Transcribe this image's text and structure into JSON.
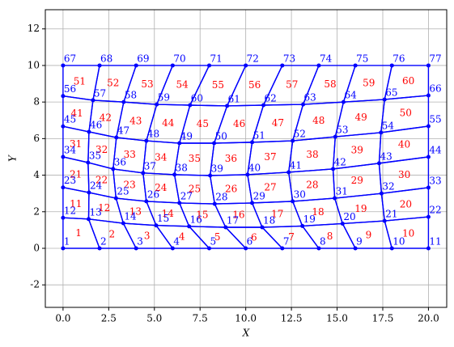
{
  "chart_data": {
    "type": "mesh",
    "xlabel": "X",
    "ylabel": "Y",
    "xlim": [
      -0.97,
      21.0
    ],
    "ylim": [
      -3.23,
      13.05
    ],
    "xticks": [
      {
        "value": 0,
        "label": "0.0"
      },
      {
        "value": 2.5,
        "label": "2.5"
      },
      {
        "value": 5,
        "label": "5.0"
      },
      {
        "value": 7.5,
        "label": "7.5"
      },
      {
        "value": 10,
        "label": "10.0"
      },
      {
        "value": 12.5,
        "label": "12.5"
      },
      {
        "value": 15,
        "label": "15.0"
      },
      {
        "value": 17.5,
        "label": "17.5"
      },
      {
        "value": 20,
        "label": "20.0"
      }
    ],
    "yticks": [
      -2,
      0,
      2,
      4,
      6,
      8,
      10,
      12
    ],
    "grid": true,
    "node_color": "#0000ff",
    "element_color": "#ff0000",
    "nodes": {
      "labels": [
        1,
        2,
        3,
        4,
        5,
        6,
        7,
        8,
        9,
        10,
        11,
        12,
        13,
        14,
        15,
        16,
        17,
        18,
        19,
        20,
        21,
        22,
        23,
        24,
        25,
        26,
        27,
        28,
        29,
        30,
        31,
        32,
        33,
        34,
        35,
        36,
        37,
        38,
        39,
        40,
        41,
        42,
        43,
        44,
        45,
        46,
        47,
        48,
        49,
        50,
        51,
        52,
        53,
        54,
        55,
        56,
        57,
        58,
        59,
        60,
        61,
        62,
        63,
        64,
        65,
        66,
        67,
        68,
        69,
        70,
        71,
        72,
        73,
        74,
        75,
        76,
        77
      ],
      "x": [
        0,
        2,
        4,
        6,
        8,
        10,
        12,
        14,
        16,
        18,
        20,
        0,
        1.4,
        3.3,
        5.1,
        6.9,
        8.9,
        10.9,
        13.1,
        15.3,
        17.6,
        20,
        0,
        1.42,
        2.9,
        4.56,
        6.37,
        8.3,
        10.35,
        12.57,
        14.87,
        17.43,
        20,
        0,
        1.37,
        2.74,
        4.38,
        6.1,
        8.05,
        10.1,
        12.35,
        14.78,
        17.3,
        20,
        0,
        1.42,
        2.92,
        4.56,
        6.37,
        8.27,
        10.35,
        12.57,
        14.9,
        17.4,
        20,
        0,
        1.64,
        3.32,
        5.13,
        6.95,
        8.98,
        10.97,
        13.14,
        15.35,
        17.6,
        20,
        0,
        2,
        4,
        6,
        8,
        10,
        12,
        14,
        16,
        18,
        20
      ],
      "y": [
        0,
        0,
        0,
        0,
        0,
        0,
        0,
        0,
        0,
        0,
        0,
        1.67,
        1.6,
        1.37,
        1.25,
        1.2,
        1.15,
        1.15,
        1.22,
        1.35,
        1.5,
        1.72,
        3.33,
        3.05,
        2.74,
        2.57,
        2.48,
        2.43,
        2.48,
        2.57,
        2.74,
        3.0,
        3.32,
        5.0,
        4.69,
        4.34,
        4.12,
        4.03,
        3.98,
        4.03,
        4.16,
        4.34,
        4.65,
        5.0,
        6.67,
        6.37,
        6.06,
        5.88,
        5.75,
        5.75,
        5.8,
        5.88,
        6.1,
        6.33,
        6.68,
        8.33,
        8.1,
        8.0,
        7.87,
        7.83,
        7.79,
        7.83,
        7.87,
        8.0,
        8.14,
        8.36,
        10,
        10,
        10,
        10,
        10,
        10,
        10,
        10,
        10,
        10,
        10
      ]
    },
    "elements": {
      "labels": [
        1,
        2,
        3,
        4,
        5,
        6,
        7,
        8,
        9,
        10,
        11,
        12,
        13,
        14,
        15,
        16,
        17,
        18,
        19,
        20,
        21,
        22,
        23,
        24,
        25,
        26,
        27,
        28,
        29,
        30,
        31,
        32,
        33,
        34,
        35,
        36,
        37,
        38,
        39,
        40,
        41,
        42,
        43,
        44,
        45,
        46,
        47,
        48,
        49,
        50,
        51,
        52,
        53,
        54,
        55,
        56,
        57,
        58,
        59,
        60
      ],
      "connectivity": [
        [
          1,
          2,
          13,
          12
        ],
        [
          2,
          3,
          14,
          13
        ],
        [
          3,
          4,
          15,
          14
        ],
        [
          4,
          5,
          16,
          15
        ],
        [
          5,
          6,
          17,
          16
        ],
        [
          6,
          7,
          18,
          17
        ],
        [
          7,
          8,
          19,
          18
        ],
        [
          8,
          9,
          20,
          19
        ],
        [
          9,
          10,
          21,
          20
        ],
        [
          10,
          11,
          22,
          21
        ],
        [
          12,
          13,
          24,
          23
        ],
        [
          13,
          14,
          25,
          24
        ],
        [
          14,
          15,
          26,
          25
        ],
        [
          15,
          16,
          27,
          26
        ],
        [
          16,
          17,
          28,
          27
        ],
        [
          17,
          18,
          29,
          28
        ],
        [
          18,
          19,
          30,
          29
        ],
        [
          19,
          20,
          31,
          30
        ],
        [
          20,
          21,
          32,
          31
        ],
        [
          21,
          22,
          33,
          32
        ],
        [
          23,
          24,
          35,
          34
        ],
        [
          24,
          25,
          36,
          35
        ],
        [
          25,
          26,
          37,
          36
        ],
        [
          26,
          27,
          38,
          37
        ],
        [
          27,
          28,
          39,
          38
        ],
        [
          28,
          29,
          40,
          39
        ],
        [
          29,
          30,
          41,
          40
        ],
        [
          30,
          31,
          42,
          41
        ],
        [
          31,
          32,
          43,
          42
        ],
        [
          32,
          33,
          44,
          43
        ],
        [
          34,
          35,
          46,
          45
        ],
        [
          35,
          36,
          47,
          46
        ],
        [
          36,
          37,
          48,
          47
        ],
        [
          37,
          38,
          49,
          48
        ],
        [
          38,
          39,
          50,
          49
        ],
        [
          39,
          40,
          51,
          50
        ],
        [
          40,
          41,
          52,
          51
        ],
        [
          41,
          42,
          53,
          52
        ],
        [
          42,
          43,
          54,
          53
        ],
        [
          43,
          44,
          55,
          54
        ],
        [
          45,
          46,
          57,
          56
        ],
        [
          46,
          47,
          58,
          57
        ],
        [
          47,
          48,
          59,
          58
        ],
        [
          48,
          49,
          60,
          59
        ],
        [
          49,
          50,
          61,
          60
        ],
        [
          50,
          51,
          62,
          61
        ],
        [
          51,
          52,
          63,
          62
        ],
        [
          52,
          53,
          64,
          63
        ],
        [
          53,
          54,
          65,
          64
        ],
        [
          54,
          55,
          66,
          65
        ],
        [
          56,
          57,
          68,
          67
        ],
        [
          57,
          58,
          69,
          68
        ],
        [
          58,
          59,
          70,
          69
        ],
        [
          59,
          60,
          71,
          70
        ],
        [
          60,
          61,
          72,
          71
        ],
        [
          61,
          62,
          73,
          72
        ],
        [
          62,
          63,
          74,
          73
        ],
        [
          63,
          64,
          75,
          74
        ],
        [
          64,
          65,
          76,
          75
        ],
        [
          65,
          66,
          77,
          76
        ]
      ]
    }
  }
}
